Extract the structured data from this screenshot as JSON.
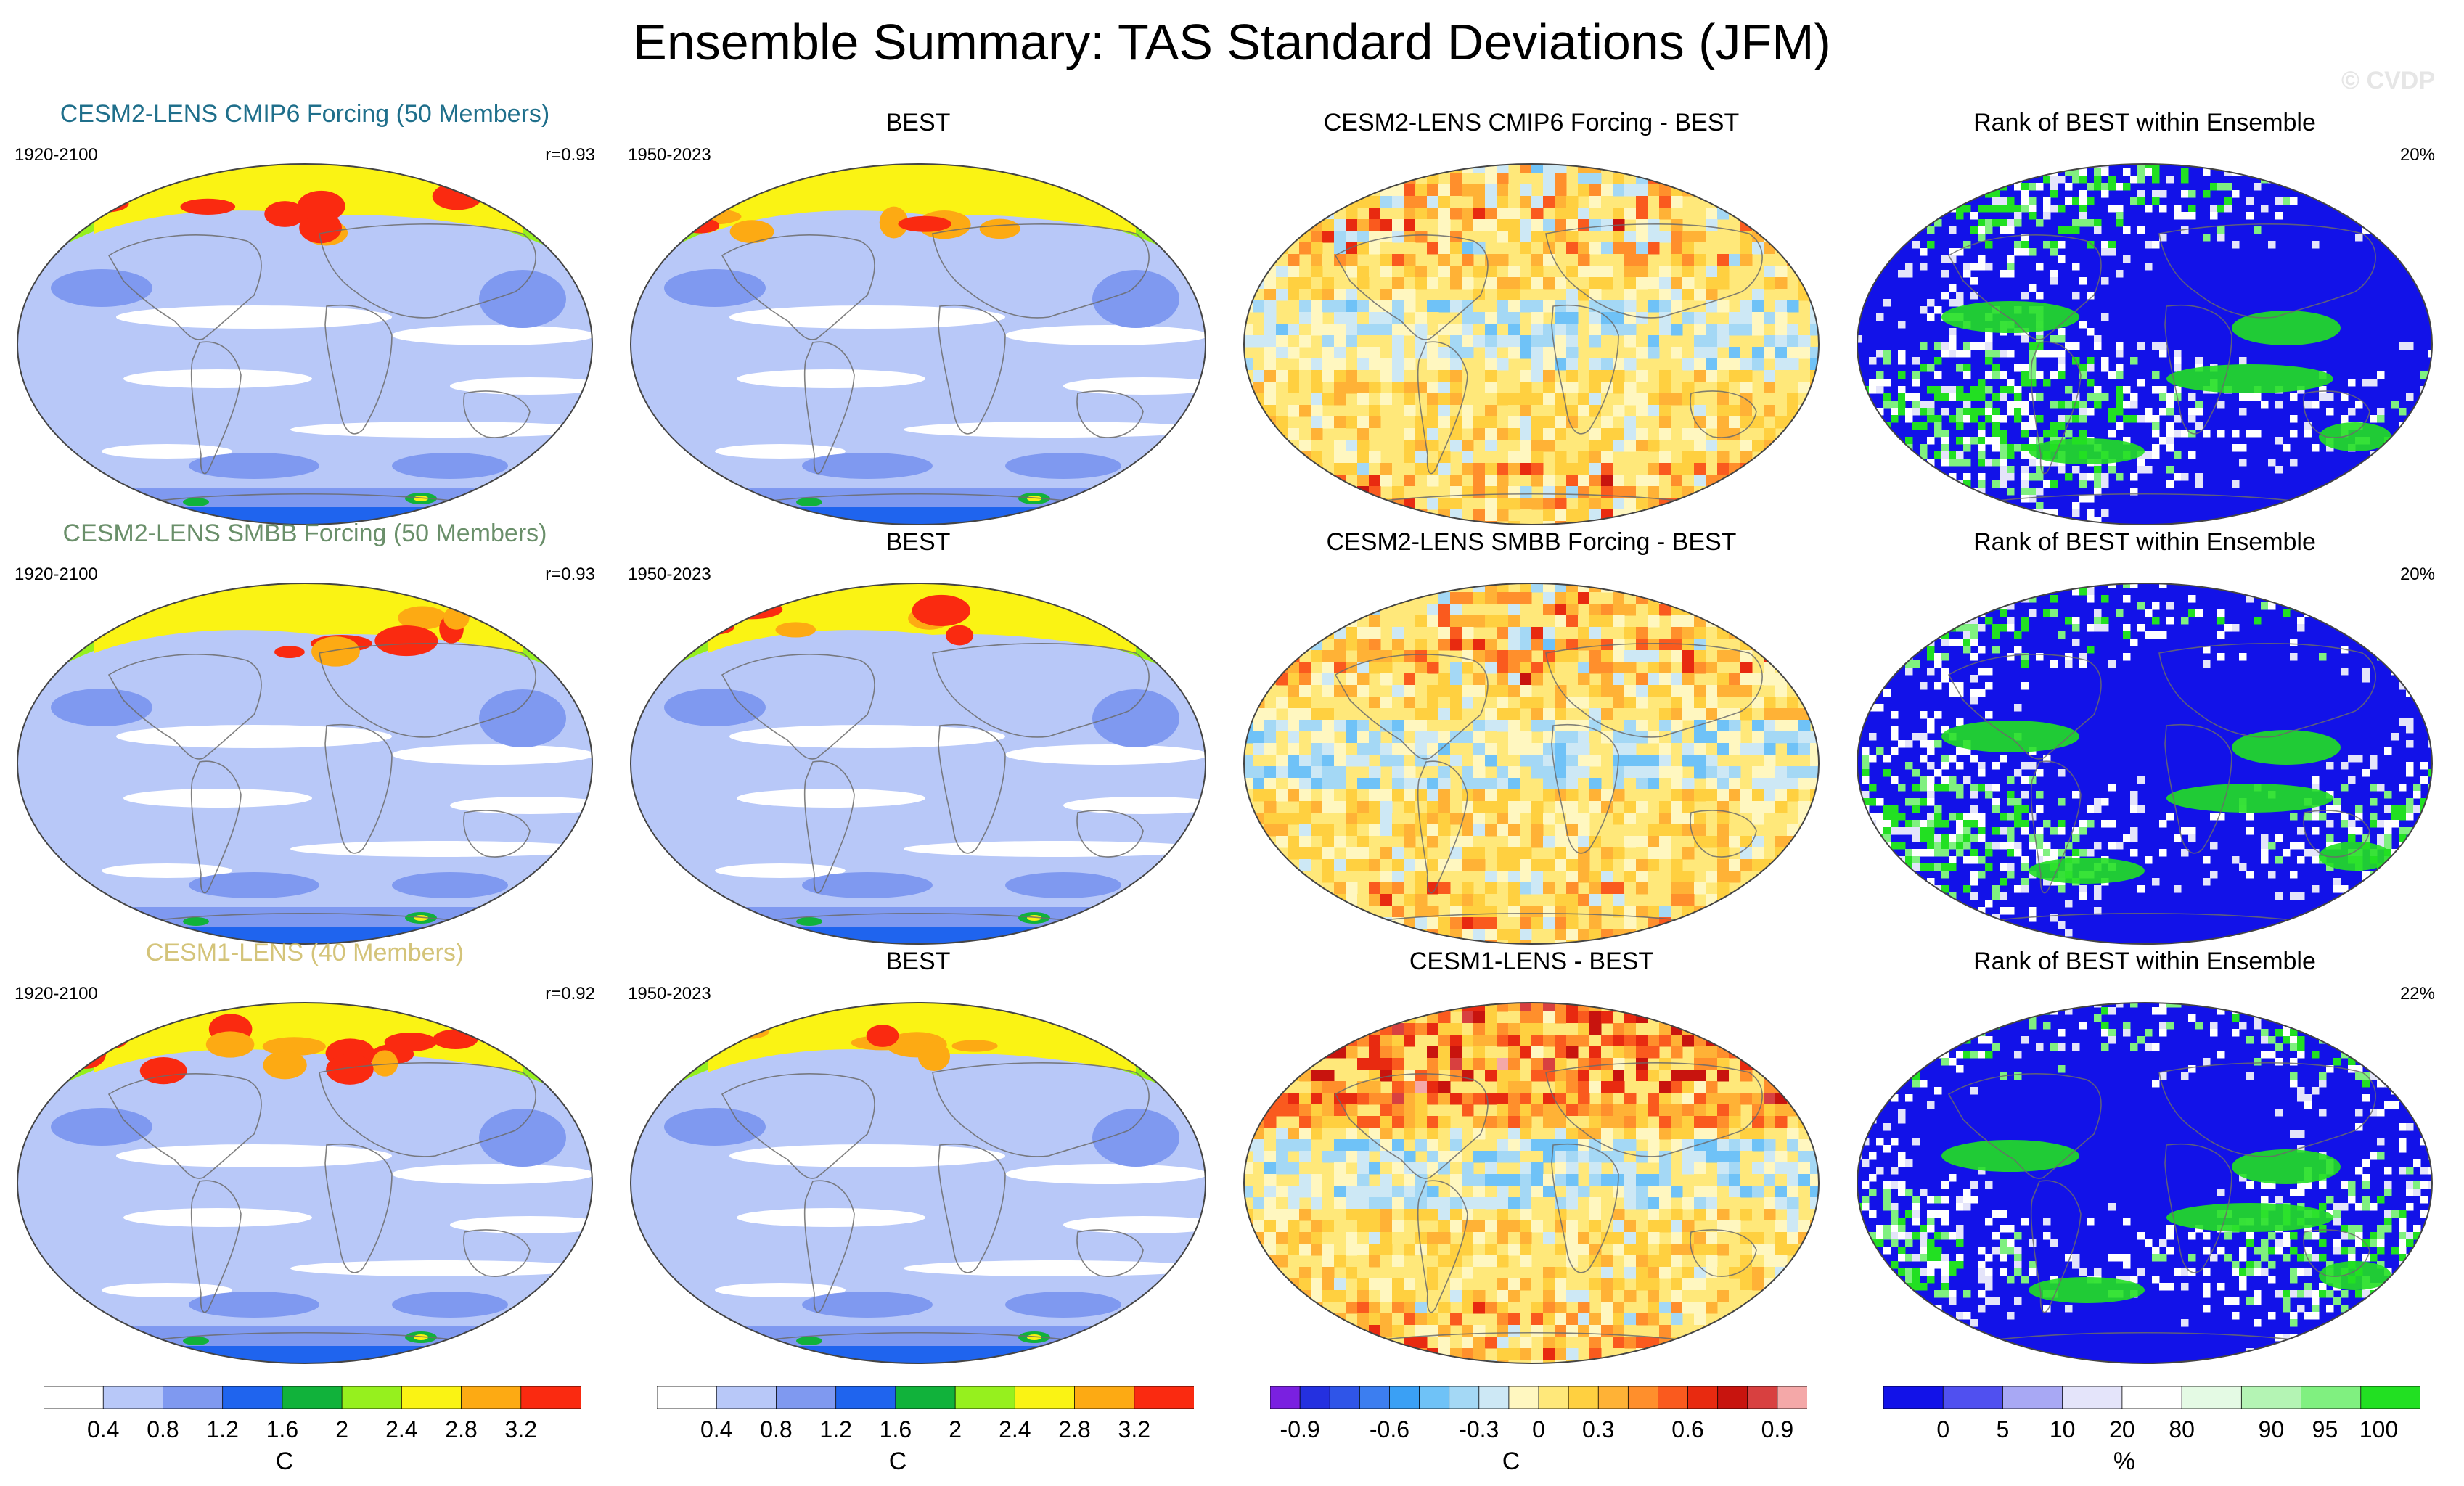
{
  "page": {
    "title": "Ensemble Summary: TAS Standard Deviations (JFM)",
    "watermark": "© CVDP"
  },
  "colors": {
    "cesm2_cmip6": "#1f6f8b",
    "cesm2_smbb": "#6a8f6a",
    "cesm1": "#d4c47a",
    "ocean_white": "#ffffff",
    "land_outline": "#6b6b6b",
    "frame": "#444444"
  },
  "chart_data": {
    "type": "map-grid",
    "rows": [
      {
        "ensemble": {
          "title": "CESM2-LENS CMIP6 Forcing (50 Members)",
          "period": "1920-2100",
          "stat": "r=0.93",
          "title_color": "cesm2_cmip6"
        },
        "obs": {
          "title": "BEST",
          "period": "1950-2023"
        },
        "diff": {
          "title": "CESM2-LENS CMIP6 Forcing - BEST"
        },
        "rank": {
          "title": "Rank of BEST within Ensemble",
          "stat": "20%"
        }
      },
      {
        "ensemble": {
          "title": "CESM2-LENS SMBB Forcing (50 Members)",
          "period": "1920-2100",
          "stat": "r=0.93",
          "title_color": "cesm2_smbb"
        },
        "obs": {
          "title": "BEST",
          "period": "1950-2023"
        },
        "diff": {
          "title": "CESM2-LENS SMBB Forcing - BEST"
        },
        "rank": {
          "title": "Rank of BEST within Ensemble",
          "stat": "20%"
        }
      },
      {
        "ensemble": {
          "title": "CESM1-LENS (40 Members)",
          "period": "1920-2100",
          "stat": "r=0.92",
          "title_color": "cesm1"
        },
        "obs": {
          "title": "BEST",
          "period": "1950-2023"
        },
        "diff": {
          "title": "CESM1-LENS - BEST"
        },
        "rank": {
          "title": "Rank of BEST within Ensemble",
          "stat": "22%"
        }
      }
    ],
    "colorbars": [
      {
        "id": "stddev",
        "unit": "C",
        "colors": [
          "#ffffff",
          "#b8c8f8",
          "#7f99f0",
          "#1f64ee",
          "#11b23b",
          "#96f01e",
          "#faf314",
          "#fdaa13",
          "#fa2a10"
        ],
        "ticks": [
          "0.4",
          "0.8",
          "1.2",
          "1.6",
          "2",
          "2.4",
          "2.8",
          "3.2"
        ]
      },
      {
        "id": "stddev_obs",
        "unit": "C",
        "colors": [
          "#ffffff",
          "#b8c8f8",
          "#7f99f0",
          "#1f64ee",
          "#11b23b",
          "#96f01e",
          "#faf314",
          "#fdaa13",
          "#fa2a10"
        ],
        "ticks": [
          "0.4",
          "0.8",
          "1.2",
          "1.6",
          "2",
          "2.4",
          "2.8",
          "3.2"
        ]
      },
      {
        "id": "difference",
        "unit": "C",
        "colors": [
          "#7a20e0",
          "#2430e0",
          "#2f55e8",
          "#3c7ef0",
          "#3aa0f5",
          "#6fc2f7",
          "#a4d8f5",
          "#cde8f5",
          "#fff7c0",
          "#ffe87a",
          "#ffd040",
          "#ffb236",
          "#ff8f2c",
          "#fa5a1e",
          "#e82a10",
          "#c8140e",
          "#d84040",
          "#f4a8a8"
        ],
        "ticks": [
          "-0.9",
          "-0.6",
          "-0.3",
          "0",
          "0.3",
          "0.6",
          "0.9"
        ],
        "tick_index": [
          1,
          4,
          7,
          9,
          11,
          14,
          17
        ]
      },
      {
        "id": "rank",
        "unit": "%",
        "colors": [
          "#1212e8",
          "#5050f0",
          "#a8a8f4",
          "#e4e4fa",
          "#ffffff",
          "#e4fae4",
          "#b4f4b4",
          "#80f080",
          "#22e022"
        ],
        "ticks": [
          "0",
          "5",
          "10",
          "20",
          "80",
          "90",
          "95",
          "100"
        ],
        "tick_index": [
          1,
          2,
          3,
          4,
          5,
          6.5,
          7.4,
          8.3
        ]
      }
    ]
  }
}
